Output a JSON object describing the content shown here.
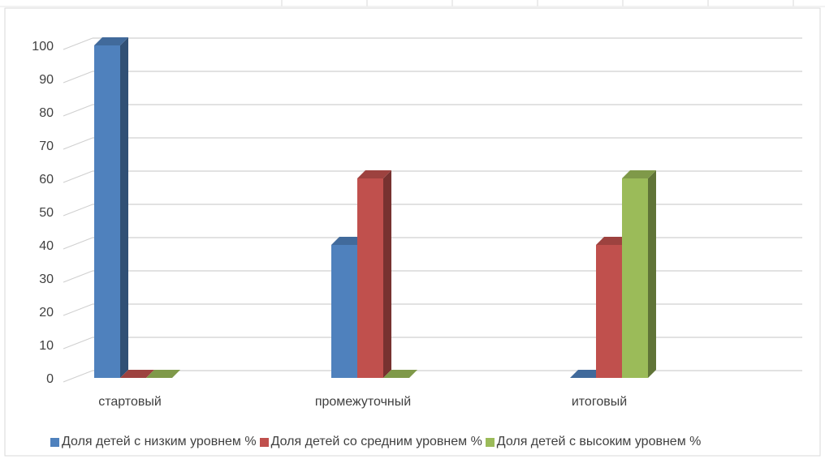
{
  "chart_data": {
    "type": "bar",
    "style": "3d-clustered-column",
    "categories": [
      "стартовый",
      "промежуточный",
      "итоговый"
    ],
    "series": [
      {
        "name": "Доля детей с низким уровнем  %",
        "values": [
          100,
          40,
          0
        ],
        "color": "#4f81bd"
      },
      {
        "name": "Доля детей со средним уровнем  %",
        "values": [
          0,
          60,
          40
        ],
        "color": "#c0504d"
      },
      {
        "name": "Доля детей с высоким уровнем  %",
        "values": [
          0,
          0,
          60
        ],
        "color": "#9bbb59"
      }
    ],
    "ylim": [
      0,
      100
    ],
    "yticks": [
      0,
      10,
      20,
      30,
      40,
      50,
      60,
      70,
      80,
      90,
      100
    ],
    "grid": true,
    "legend_position": "bottom"
  }
}
